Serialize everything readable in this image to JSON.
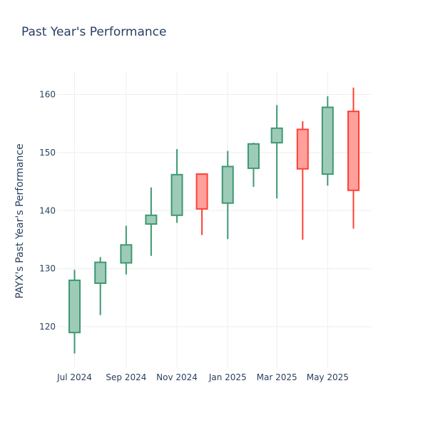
{
  "chart_data": {
    "type": "candlestick",
    "title": "Past Year's Performance",
    "xlabel": "",
    "ylabel": "PAYX's Past Year's Performance",
    "ylim": [
      113,
      164
    ],
    "yticks": [
      120,
      130,
      140,
      150,
      160
    ],
    "xticks": [
      {
        "label": "Jul 2024",
        "date": "2024-07-01"
      },
      {
        "label": "Sep 2024",
        "date": "2024-09-01"
      },
      {
        "label": "Nov 2024",
        "date": "2024-11-01"
      },
      {
        "label": "Jan 2025",
        "date": "2025-01-01"
      },
      {
        "label": "Mar 2025",
        "date": "2025-03-01"
      },
      {
        "label": "May 2025",
        "date": "2025-05-01"
      }
    ],
    "xlim": [
      "2024-06-10",
      "2025-06-22"
    ],
    "grid": true,
    "increasing_color": "#3d9970",
    "increasing_fill": "#9ecbb7",
    "decreasing_color": "#ff4136",
    "decreasing_fill": "#ffa09b",
    "candles": [
      {
        "date": "2024-07-01",
        "open": 119.0,
        "high": 129.8,
        "low": 115.4,
        "close": 128.0
      },
      {
        "date": "2024-08-01",
        "open": 127.5,
        "high": 132.0,
        "low": 122.0,
        "close": 131.1
      },
      {
        "date": "2024-09-01",
        "open": 131.0,
        "high": 137.4,
        "low": 129.0,
        "close": 134.1
      },
      {
        "date": "2024-10-01",
        "open": 137.7,
        "high": 144.0,
        "low": 132.2,
        "close": 139.2
      },
      {
        "date": "2024-11-01",
        "open": 139.2,
        "high": 150.6,
        "low": 137.9,
        "close": 146.2
      },
      {
        "date": "2024-12-01",
        "open": 146.3,
        "high": 146.4,
        "low": 135.8,
        "close": 140.3
      },
      {
        "date": "2025-01-01",
        "open": 141.3,
        "high": 150.3,
        "low": 135.1,
        "close": 147.6
      },
      {
        "date": "2025-02-01",
        "open": 147.3,
        "high": 151.7,
        "low": 144.1,
        "close": 151.5
      },
      {
        "date": "2025-03-01",
        "open": 151.7,
        "high": 158.2,
        "low": 142.1,
        "close": 154.2
      },
      {
        "date": "2025-04-01",
        "open": 154.0,
        "high": 155.4,
        "low": 135.0,
        "close": 147.2
      },
      {
        "date": "2025-05-01",
        "open": 146.3,
        "high": 159.7,
        "low": 144.3,
        "close": 157.8
      },
      {
        "date": "2025-06-01",
        "open": 157.1,
        "high": 161.2,
        "low": 136.9,
        "close": 143.5
      }
    ]
  }
}
